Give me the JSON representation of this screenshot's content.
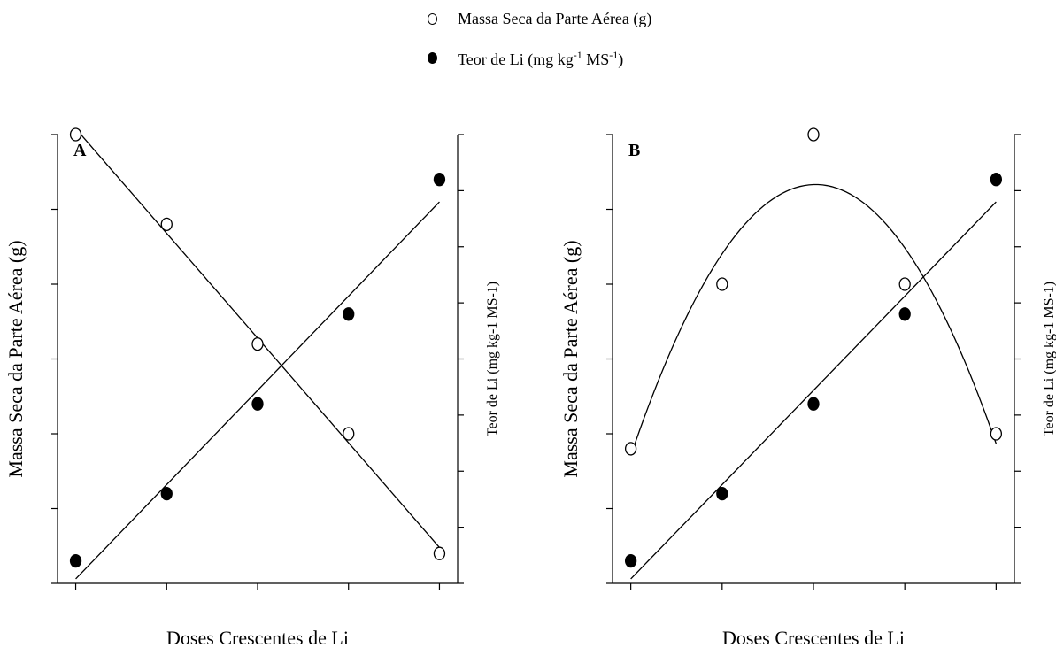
{
  "legend": {
    "open_label": "Massa Seca da Parte Aérea (g)",
    "filled_label_main": "Teor de Li (mg kg",
    "filled_label_sup1": "-1",
    "filled_label_mid": " MS",
    "filled_label_sup2": "-1",
    "filled_label_end": ")"
  },
  "chart_data": [
    {
      "type": "scatter",
      "panel_label": "A",
      "xlabel": "Doses Crescentes de Li",
      "ylabel_left": "Massa Seca da Parte Aérea (g)",
      "ylabel_right": "Teor de Li (mg kg-1 MS-1)",
      "x": [
        0,
        1,
        2,
        3,
        4
      ],
      "xlim": [
        -0.2,
        4.2
      ],
      "ylim_left": [
        0,
        6
      ],
      "ylim_right": [
        0,
        8
      ],
      "left_ticks": 6,
      "right_ticks": 8,
      "x_ticks": 5,
      "series": [
        {
          "name": "Massa Seca da Parte Aérea (g)",
          "axis": "left",
          "marker": "open",
          "values": [
            6.0,
            4.8,
            3.2,
            2.0,
            0.4
          ],
          "fit": "linear"
        },
        {
          "name": "Teor de Li (mg kg-1 MS-1)",
          "axis": "right",
          "marker": "filled",
          "values": [
            0.4,
            1.6,
            3.2,
            4.8,
            7.2
          ],
          "fit": "linear"
        }
      ]
    },
    {
      "type": "scatter",
      "panel_label": "B",
      "xlabel": "Doses Crescentes de Li",
      "ylabel_left": "Massa Seca da Parte Aérea (g)",
      "ylabel_right": "Teor de Li (mg kg-1 MS-1)",
      "x": [
        0,
        1,
        2,
        3,
        4
      ],
      "xlim": [
        -0.2,
        4.2
      ],
      "ylim_left": [
        0,
        6
      ],
      "ylim_right": [
        0,
        8
      ],
      "left_ticks": 6,
      "right_ticks": 8,
      "x_ticks": 5,
      "series": [
        {
          "name": "Massa Seca da Parte Aérea (g)",
          "axis": "left",
          "marker": "open",
          "values": [
            1.8,
            4.0,
            6.0,
            4.0,
            2.0
          ],
          "fit": "quadratic"
        },
        {
          "name": "Teor de Li (mg kg-1 MS-1)",
          "axis": "right",
          "marker": "filled",
          "values": [
            0.4,
            1.6,
            3.2,
            4.8,
            7.2
          ],
          "fit": "linear"
        }
      ]
    }
  ]
}
